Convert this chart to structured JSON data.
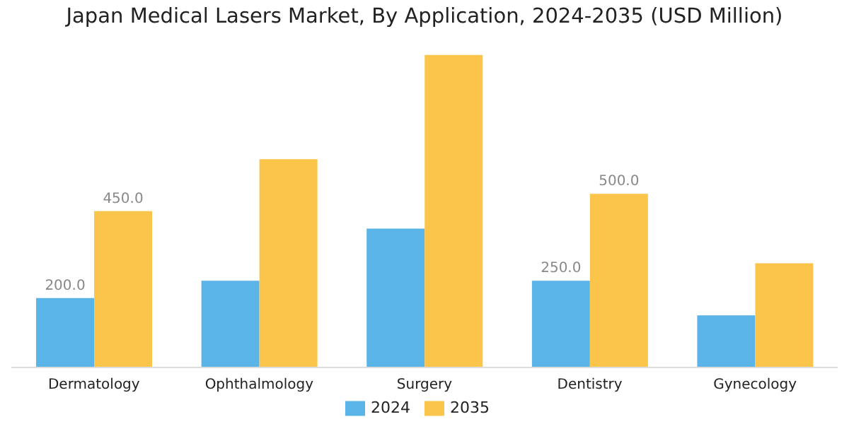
{
  "chart_data": {
    "type": "bar",
    "title": "Japan Medical Lasers Market, By Application, 2024-2035 (USD Million)",
    "categories": [
      "Dermatology",
      "Ophthalmology",
      "Surgery",
      "Dentistry",
      "Gynecology"
    ],
    "series": [
      {
        "name": "2024",
        "color": "#5ab4e8",
        "values": [
          200,
          250,
          400,
          250,
          150
        ],
        "value_labels": [
          "200.0",
          null,
          null,
          "250.0",
          null
        ]
      },
      {
        "name": "2035",
        "color": "#fac54a",
        "values": [
          450,
          600,
          900,
          500,
          300
        ],
        "value_labels": [
          "450.0",
          null,
          null,
          "500.0",
          null
        ]
      }
    ],
    "tick_labels": "x",
    "legend": "bottom",
    "grid": false
  }
}
